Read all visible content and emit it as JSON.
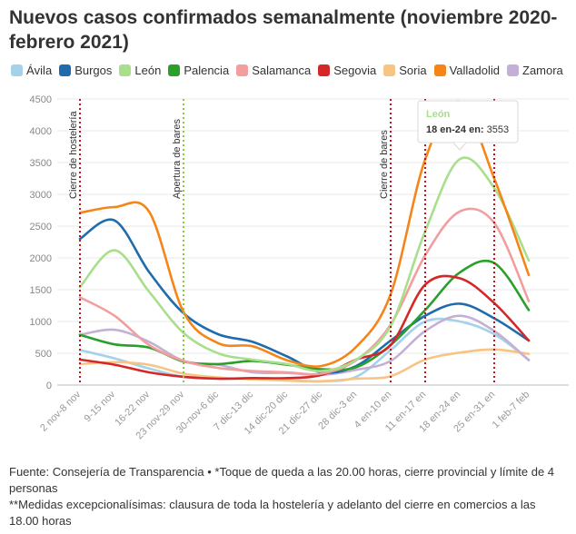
{
  "chart_data": {
    "type": "line",
    "title": "Nuevos casos confirmados semanalmente (noviembre 2020-febrero 2021)",
    "categories": [
      "2 nov-8 nov",
      "9-15 nov",
      "16-22 nov",
      "23 nov-29 nov",
      "30-nov-6 dic",
      "7 dic-13 dic",
      "14 dic-20 dic",
      "21 dic-27 dic",
      "28 dic-3 en",
      "4 en-10 en",
      "11 en-17 en",
      "18 en-24 en",
      "25 en-31 en",
      "1 feb-7 feb"
    ],
    "ylim": [
      0,
      4500
    ],
    "yticks": [
      "0",
      "500",
      "1000",
      "1500",
      "2000",
      "2500",
      "3000",
      "3500",
      "4000",
      "4500"
    ],
    "series": [
      {
        "name": "Ávila",
        "color": "#a6d1ea",
        "values": [
          550,
          420,
          260,
          130,
          100,
          100,
          80,
          60,
          130,
          550,
          1000,
          1000,
          800,
          400
        ]
      },
      {
        "name": "Burgos",
        "color": "#1f6cad",
        "values": [
          2300,
          2590,
          1780,
          1130,
          800,
          680,
          450,
          200,
          300,
          700,
          1090,
          1280,
          1050,
          700
        ]
      },
      {
        "name": "León",
        "color": "#a9de8c",
        "values": [
          1540,
          2120,
          1470,
          820,
          500,
          400,
          330,
          220,
          400,
          930,
          2420,
          3553,
          3100,
          1960
        ]
      },
      {
        "name": "Palencia",
        "color": "#2aa02b",
        "values": [
          790,
          640,
          590,
          370,
          330,
          380,
          320,
          250,
          280,
          630,
          1180,
          1770,
          1920,
          1180
        ]
      },
      {
        "name": "Salamanca",
        "color": "#f29e9e",
        "values": [
          1380,
          1090,
          630,
          380,
          270,
          220,
          200,
          180,
          390,
          950,
          2040,
          2730,
          2550,
          1320
        ]
      },
      {
        "name": "Segovia",
        "color": "#d62728",
        "values": [
          400,
          320,
          200,
          130,
          100,
          110,
          110,
          160,
          400,
          630,
          1580,
          1680,
          1290,
          700
        ]
      },
      {
        "name": "Soria",
        "color": "#f8c484",
        "values": [
          330,
          360,
          320,
          180,
          120,
          90,
          70,
          60,
          100,
          140,
          400,
          510,
          560,
          490
        ]
      },
      {
        "name": "Valladolid",
        "color": "#f58518",
        "values": [
          2710,
          2800,
          2730,
          1150,
          660,
          610,
          390,
          300,
          600,
          1430,
          3550,
          4460,
          3250,
          1730
        ]
      },
      {
        "name": "Zamora",
        "color": "#c5b0d5",
        "values": [
          790,
          870,
          680,
          380,
          320,
          200,
          190,
          160,
          240,
          380,
          850,
          1090,
          850,
          390
        ]
      }
    ],
    "annotations": [
      {
        "label": "Cierre de hostelería",
        "position": 0
      },
      {
        "label": "Apertura de bares",
        "position": 3
      },
      {
        "label": "Cierre de bares",
        "position": 9
      },
      {
        "label": "",
        "position": 10
      },
      {
        "label": "",
        "position": 12
      }
    ],
    "tooltip": {
      "series": "León",
      "label": "18 en-24 en:",
      "value": "3553",
      "index": 11
    }
  },
  "source": {
    "line1": "Fuente: Consejería de Transparencia • *Toque de queda a las 20.00 horas, cierre provincial y límite de 4 personas",
    "line2": "**Medidas excepcionalísimas: clausura de toda la hostelería y adelanto del cierre en comercios a las 18.00 horas"
  }
}
